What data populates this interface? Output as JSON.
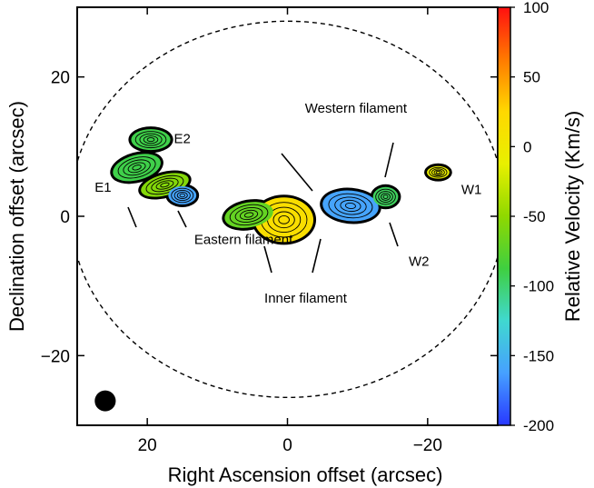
{
  "chart_data": {
    "type": "contour",
    "xlabel": "Right Ascension offset (arcsec)",
    "ylabel": "Declination offset (arcsec)",
    "colorbar_label": "Relative Velocity (Km/s)",
    "xlim": [
      30,
      -30
    ],
    "ylim": [
      -30,
      30
    ],
    "x_ticks": [
      20,
      0,
      -20
    ],
    "x_tick_labels": [
      "20",
      "0",
      "−20"
    ],
    "y_ticks": [
      20,
      0,
      -20
    ],
    "y_tick_labels": [
      "20",
      "0",
      "−20"
    ],
    "colorbar_range": [
      -200,
      100
    ],
    "colorbar_ticks": [
      100,
      50,
      0,
      -50,
      -100,
      -150,
      -200
    ],
    "colorbar_tick_labels": [
      "100",
      "50",
      "0",
      "-50",
      "-100",
      "-150",
      "-200"
    ],
    "colorbar_colors": [
      "#ff1010",
      "#ff7a00",
      "#ffd800",
      "#e8f000",
      "#8fd800",
      "#3fcf40",
      "#40d8d0",
      "#46a0ff",
      "#2838ff"
    ],
    "ellipse": {
      "x": 0,
      "y": 1,
      "rx": 31,
      "ry": 27
    },
    "beam": {
      "x": 26,
      "y": -26.5,
      "rx": 1.5,
      "ry": 1.5
    },
    "clumps": [
      {
        "x": 21.5,
        "y": 7,
        "rx": 3.5,
        "ry": 1.8,
        "angle": 15,
        "velocity": -90
      },
      {
        "x": 17.5,
        "y": 4.5,
        "rx": 3.5,
        "ry": 1.5,
        "angle": 15,
        "velocity": -55
      },
      {
        "x": 15,
        "y": 3,
        "rx": 2,
        "ry": 1.3,
        "angle": 0,
        "velocity": -160
      },
      {
        "x": 19.5,
        "y": 11,
        "rx": 2.8,
        "ry": 1.5,
        "angle": 0,
        "velocity": -90
      },
      {
        "x": 0.5,
        "y": -0.5,
        "rx": 4.2,
        "ry": 3.2,
        "angle": 0,
        "velocity": 15
      },
      {
        "x": 5.5,
        "y": 0.2,
        "rx": 3.5,
        "ry": 1.8,
        "angle": 10,
        "velocity": -70
      },
      {
        "x": -9,
        "y": 1.5,
        "rx": 4,
        "ry": 2.2,
        "angle": -5,
        "velocity": -160
      },
      {
        "x": -14,
        "y": 2.8,
        "rx": 1.8,
        "ry": 1.4,
        "angle": 0,
        "velocity": -95
      },
      {
        "x": -21.5,
        "y": 6.3,
        "rx": 1.6,
        "ry": 0.9,
        "angle": 0,
        "velocity": -10
      }
    ],
    "annotations": [
      {
        "text": "E1",
        "x": 27.5,
        "y": 3.5
      },
      {
        "text": "E2",
        "x": 16.2,
        "y": 10.5
      },
      {
        "text": "Eastern filament",
        "x": 13.3,
        "y": -4
      },
      {
        "text": "Western filament",
        "x": -2.5,
        "y": 14.9
      },
      {
        "text": "Inner filament",
        "x": 3.3,
        "y": -12.4
      },
      {
        "text": "W1",
        "x": -24.8,
        "y": 3.2
      },
      {
        "text": "W2",
        "x": -17.3,
        "y": -7.1
      }
    ]
  }
}
